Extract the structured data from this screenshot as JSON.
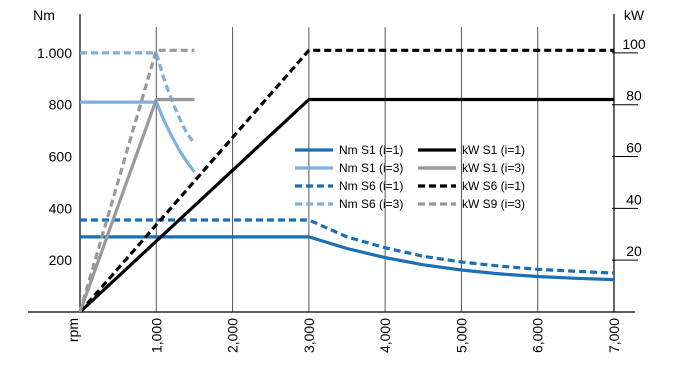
{
  "chart_data": {
    "type": "line",
    "ylabel_left": "Nm",
    "ylabel_right": "kW",
    "xlabel": "rpm",
    "xlim": [
      0,
      7000
    ],
    "ylim_left": [
      0,
      1100
    ],
    "ylim_right": [
      0,
      110
    ],
    "grid": "vertical",
    "x_ticks": [
      "1,000",
      "2,000",
      "3,000",
      "4,000",
      "5,000",
      "6,000",
      "7,000"
    ],
    "x_tick_values": [
      1000,
      2000,
      3000,
      4000,
      5000,
      6000,
      7000
    ],
    "y_ticks_left": [
      "200",
      "400",
      "600",
      "800",
      "1.000"
    ],
    "y_tick_values_left": [
      200,
      400,
      600,
      800,
      1000
    ],
    "y_ticks_right": [
      "20",
      "40",
      "60",
      "80",
      "100"
    ],
    "y_tick_values_right": [
      20,
      40,
      60,
      80,
      100
    ],
    "legend_position": "center-right",
    "series": [
      {
        "name": "Nm S1 (i=1)",
        "axis": "left",
        "color": "#1a6fb5",
        "style": "solid",
        "x": [
          0,
          3000,
          3500,
          4000,
          4500,
          5000,
          5500,
          6000,
          6500,
          7000
        ],
        "y": [
          290,
          290,
          245,
          210,
          182,
          162,
          147,
          137,
          130,
          125
        ]
      },
      {
        "name": "Nm S1 (i=3)",
        "axis": "left",
        "color": "#7eb0dc",
        "style": "solid",
        "x": [
          0,
          1000,
          1100,
          1200,
          1300,
          1400,
          1500
        ],
        "y": [
          810,
          810,
          740,
          680,
          625,
          580,
          540
        ]
      },
      {
        "name": "Nm S6 (i=1)",
        "axis": "left",
        "color": "#1a6fb5",
        "style": "dashed",
        "x": [
          0,
          3000,
          3500,
          4000,
          4500,
          5000,
          5500,
          6000,
          6500,
          7000
        ],
        "y": [
          355,
          355,
          290,
          248,
          215,
          193,
          177,
          165,
          157,
          150
        ]
      },
      {
        "name": "Nm S6 (i=3)",
        "axis": "left",
        "color": "#7eb0dc",
        "style": "dashed",
        "x": [
          0,
          1000,
          1100,
          1200,
          1300,
          1400,
          1500
        ],
        "y": [
          1000,
          1000,
          900,
          820,
          750,
          690,
          650
        ]
      },
      {
        "name": "kW S1 (i=1)",
        "axis": "right",
        "color": "#000000",
        "style": "solid",
        "x": [
          0,
          3000,
          7000
        ],
        "y": [
          0,
          82,
          82
        ]
      },
      {
        "name": "kW S1 (i=3)",
        "axis": "right",
        "color": "#999999",
        "style": "solid",
        "x": [
          0,
          1000,
          1500
        ],
        "y": [
          0,
          82,
          82
        ]
      },
      {
        "name": "kW S6 (i=1)",
        "axis": "right",
        "color": "#000000",
        "style": "dashed",
        "x": [
          0,
          3000,
          7000
        ],
        "y": [
          0,
          101,
          101
        ]
      },
      {
        "name": "kW S9 (i=3)",
        "axis": "right",
        "color": "#999999",
        "style": "dashed",
        "x": [
          0,
          1000,
          1500
        ],
        "y": [
          0,
          101,
          101
        ]
      }
    ]
  }
}
